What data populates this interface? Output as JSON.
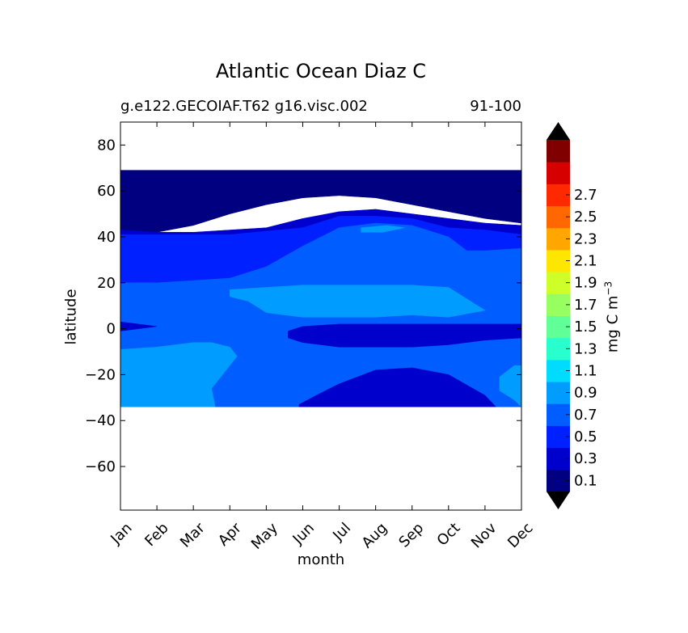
{
  "chart_data": {
    "type": "heatmap",
    "title": "Atlantic Ocean Diaz C",
    "subtitle_left": "g.e122.GECOIAF.T62 g16.visc.002",
    "subtitle_right": "91-100",
    "xlabel": "month",
    "ylabel": "latitude",
    "x_categories": [
      "Jan",
      "Feb",
      "Mar",
      "Apr",
      "May",
      "Jun",
      "Jul",
      "Aug",
      "Sep",
      "Oct",
      "Nov",
      "Dec"
    ],
    "y_ticks": [
      80,
      60,
      40,
      20,
      0,
      -20,
      -40,
      -60
    ],
    "ylim": [
      -79,
      90
    ],
    "data_lat_range": [
      -34,
      69
    ],
    "colorbar": {
      "label": "mg C m",
      "label_exponent": "−3",
      "tick_labels": [
        "0.1",
        "0.3",
        "0.5",
        "0.7",
        "0.9",
        "1.1",
        "1.3",
        "1.5",
        "1.7",
        "1.9",
        "2.1",
        "2.3",
        "2.5",
        "2.7"
      ],
      "levels": [
        0.0,
        0.2,
        0.4,
        0.6,
        0.8,
        1.0,
        1.2,
        1.4,
        1.6,
        1.8,
        2.0,
        2.2,
        2.4,
        2.6,
        2.8
      ],
      "colors": [
        "#000080",
        "#0000cd",
        "#0020ff",
        "#005dff",
        "#009cff",
        "#00dcfe",
        "#29ffce",
        "#60ff97",
        "#97ff60",
        "#ceff29",
        "#ffe600",
        "#ffa600",
        "#ff6800",
        "#ff2900",
        "#d60000",
        "#800000"
      ],
      "extend": "both",
      "extend_colors": [
        "#000000",
        "#000000"
      ]
    },
    "regions": [
      {
        "level": 0.0,
        "color": "#000080",
        "polygon": [
          [
            0,
            69
          ],
          [
            11,
            69
          ],
          [
            11,
            46
          ],
          [
            10,
            48
          ],
          [
            9,
            51
          ],
          [
            8,
            54
          ],
          [
            7,
            57
          ],
          [
            6,
            58
          ],
          [
            5,
            57
          ],
          [
            4,
            54
          ],
          [
            3,
            50
          ],
          [
            2,
            45
          ],
          [
            1,
            42
          ],
          [
            0,
            41
          ]
        ]
      },
      {
        "level": 0.2,
        "color": "#0000cd",
        "polygon": [
          [
            0,
            43
          ],
          [
            1,
            42
          ],
          [
            2,
            42
          ],
          [
            3,
            43
          ],
          [
            4,
            44
          ],
          [
            5,
            48
          ],
          [
            6,
            51
          ],
          [
            7,
            52
          ],
          [
            8,
            50
          ],
          [
            9,
            48
          ],
          [
            10,
            46
          ],
          [
            11,
            45
          ],
          [
            11,
            -34
          ],
          [
            0,
            -34
          ]
        ]
      },
      {
        "level": 0.4,
        "color": "#0020ff",
        "polygon": [
          [
            0,
            41
          ],
          [
            3,
            41
          ],
          [
            5,
            44
          ],
          [
            6,
            49
          ],
          [
            7,
            49
          ],
          [
            8,
            48
          ],
          [
            9,
            44
          ],
          [
            10,
            43
          ],
          [
            11,
            41
          ],
          [
            11,
            -34
          ],
          [
            0,
            -34
          ]
        ]
      },
      {
        "level": 0.6,
        "color": "#005dff",
        "polygon": [
          [
            0,
            20
          ],
          [
            1,
            20
          ],
          [
            2,
            21
          ],
          [
            3,
            22
          ],
          [
            4,
            27
          ],
          [
            5,
            36
          ],
          [
            6,
            44
          ],
          [
            7,
            46
          ],
          [
            8,
            45
          ],
          [
            9,
            40
          ],
          [
            9.5,
            34
          ],
          [
            10,
            34
          ],
          [
            11,
            35
          ],
          [
            11,
            -34
          ],
          [
            0,
            -34
          ]
        ]
      },
      {
        "level": 0.8,
        "color": "#009cff",
        "polygon": [
          [
            3,
            17
          ],
          [
            4,
            18
          ],
          [
            5,
            19
          ],
          [
            6,
            19
          ],
          [
            7,
            19
          ],
          [
            8,
            19
          ],
          [
            9,
            18
          ],
          [
            10,
            8
          ],
          [
            9,
            5
          ],
          [
            8,
            6
          ],
          [
            7,
            5
          ],
          [
            6,
            5
          ],
          [
            5,
            5
          ],
          [
            4,
            7
          ],
          [
            3.5,
            12
          ],
          [
            3,
            14
          ]
        ]
      },
      {
        "level": 0.8,
        "color": "#009cff",
        "polygon": [
          [
            6.6,
            44
          ],
          [
            7.3,
            45
          ],
          [
            7.8,
            44
          ],
          [
            7.2,
            42
          ],
          [
            6.6,
            42
          ]
        ]
      },
      {
        "level": 0.8,
        "color": "#009cff",
        "polygon": [
          [
            0,
            -9
          ],
          [
            1,
            -8
          ],
          [
            2,
            -6
          ],
          [
            2.5,
            -6
          ],
          [
            3,
            -8
          ],
          [
            3.2,
            -12
          ],
          [
            2.8,
            -20
          ],
          [
            2.5,
            -26
          ],
          [
            2.6,
            -34
          ],
          [
            0,
            -34
          ]
        ]
      },
      {
        "level": 0.8,
        "color": "#009cff",
        "polygon": [
          [
            10.4,
            -21
          ],
          [
            10.8,
            -16
          ],
          [
            11,
            -16
          ],
          [
            11,
            -34
          ],
          [
            10.8,
            -31
          ],
          [
            10.4,
            -27
          ]
        ]
      },
      {
        "level": 0.2,
        "color": "#0000cd",
        "polygon": [
          [
            4.6,
            -1
          ],
          [
            5,
            1
          ],
          [
            6,
            2
          ],
          [
            7,
            2
          ],
          [
            8,
            2
          ],
          [
            9,
            2
          ],
          [
            10,
            2
          ],
          [
            11,
            2
          ],
          [
            11,
            -4
          ],
          [
            10,
            -5
          ],
          [
            9,
            -7
          ],
          [
            8,
            -8
          ],
          [
            7,
            -8
          ],
          [
            6,
            -8
          ],
          [
            5,
            -6
          ],
          [
            4.6,
            -4
          ]
        ]
      },
      {
        "level": 0.2,
        "color": "#0000cd",
        "polygon": [
          [
            0,
            0
          ],
          [
            0,
            3
          ],
          [
            1,
            1
          ],
          [
            0,
            -1
          ]
        ]
      },
      {
        "level": 0.2,
        "color": "#0000cd",
        "polygon": [
          [
            4.9,
            -33
          ],
          [
            5.5,
            -28
          ],
          [
            6,
            -24
          ],
          [
            7,
            -18
          ],
          [
            8,
            -17
          ],
          [
            9,
            -20
          ],
          [
            10,
            -29
          ],
          [
            10.3,
            -34
          ],
          [
            4.9,
            -34
          ]
        ]
      }
    ]
  }
}
